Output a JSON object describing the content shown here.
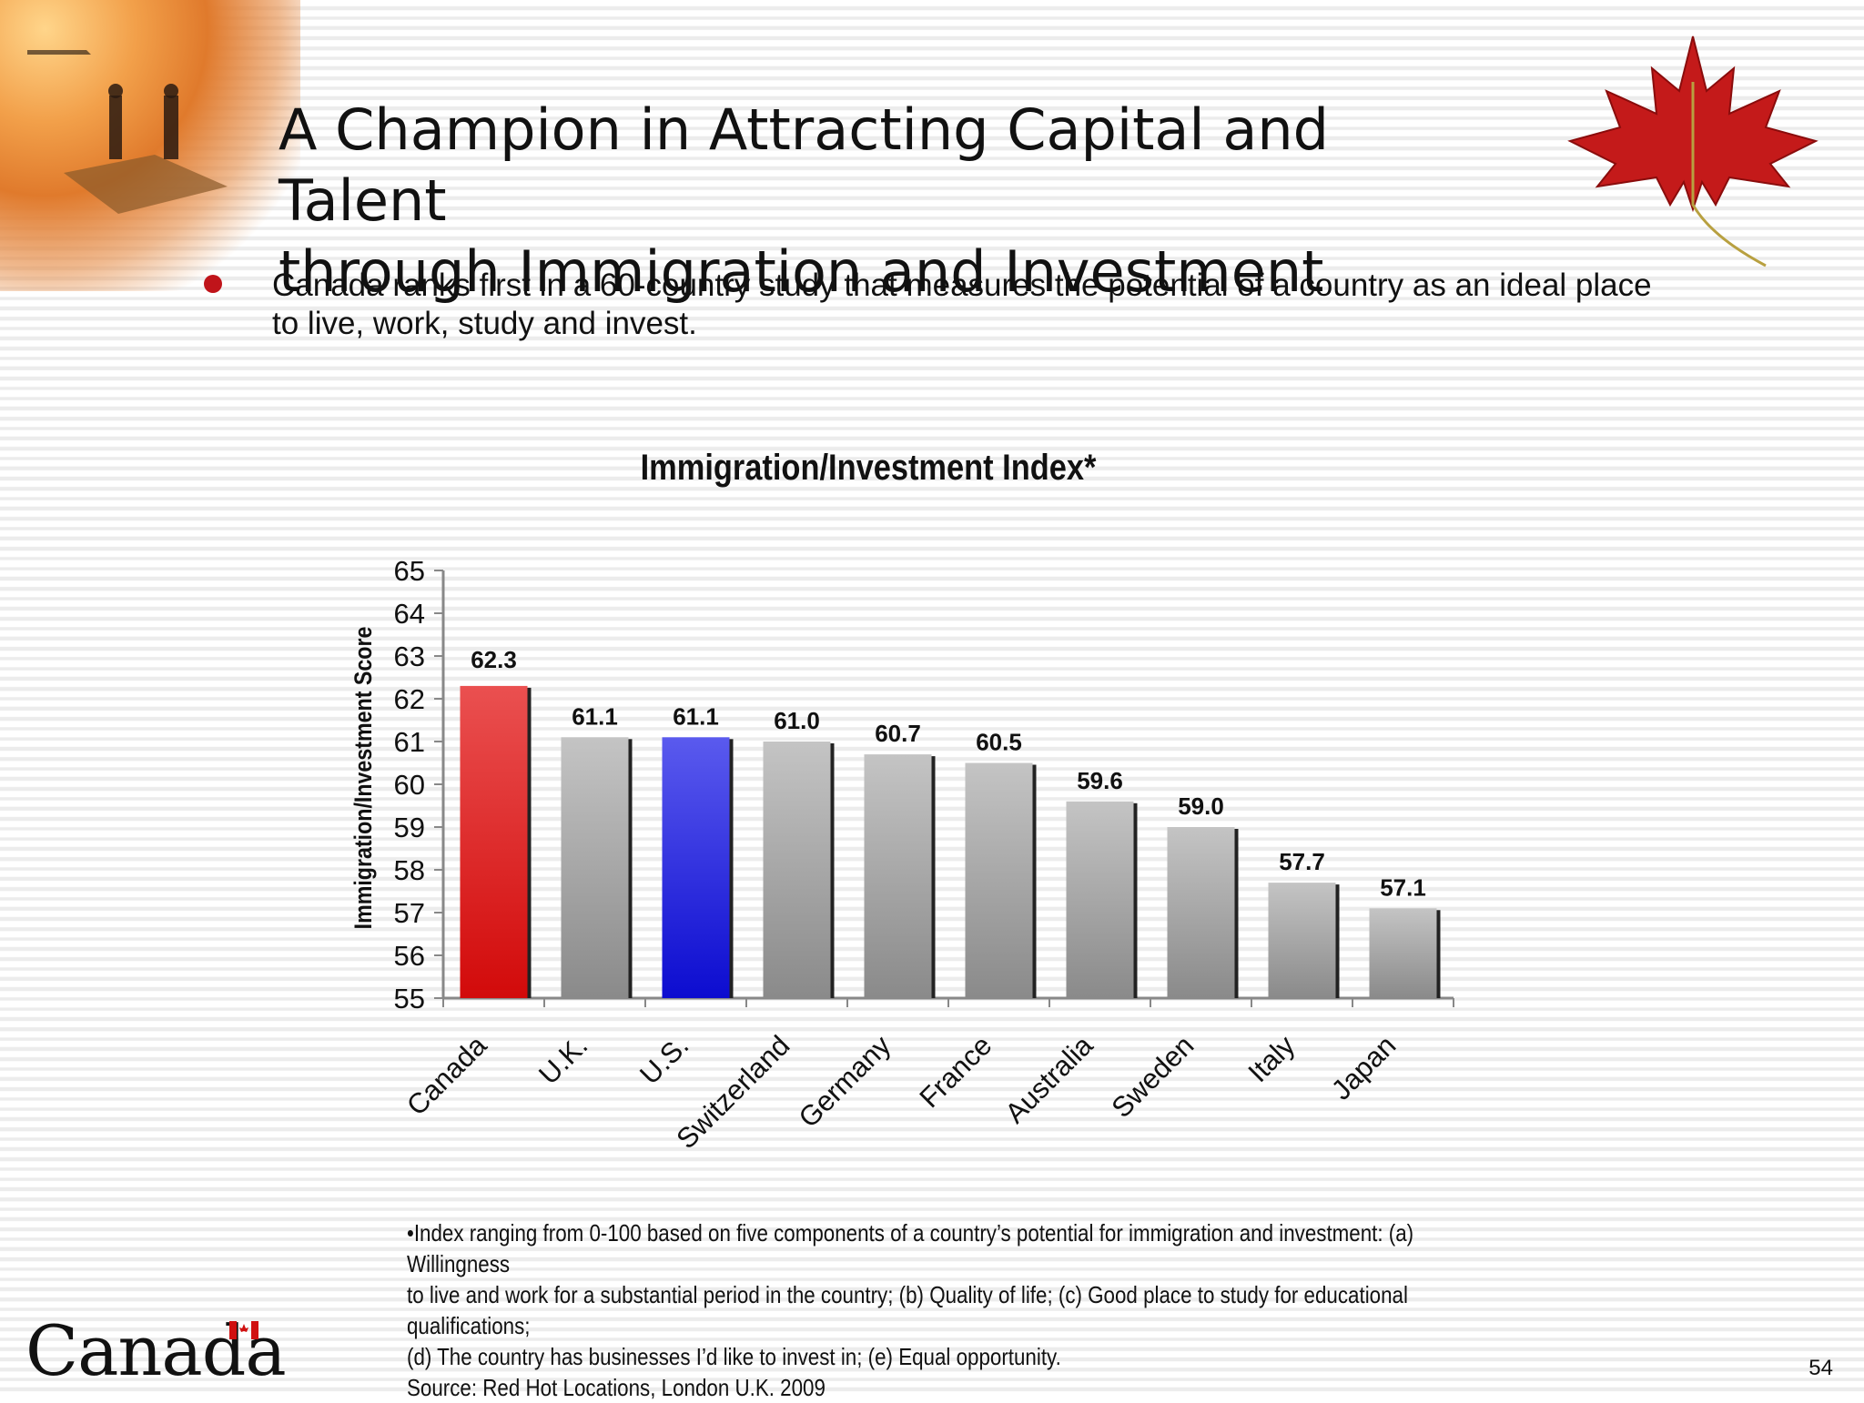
{
  "slide": {
    "title_line1": "A Champion in Attracting Capital and Talent",
    "title_line2": "through Immigration and Investment",
    "bullet": "Canada ranks first in a 60-country study that measures the potential of a country as an ideal place to live, work, study and invest.",
    "footnote_lines": [
      "•Index ranging from 0-100  based on five components of a country’s potential for immigration and investment: (a) Willingness",
      "to live and work for a substantial period in the country; (b) Quality of life; (c) Good place to study for educational qualifications;",
      "(d) The country has businesses I’d like to invest in; (e) Equal opportunity.",
      "Source: Red Hot Locations, London U.K. 2009"
    ],
    "logo_text": "Canada",
    "page_number": "54"
  },
  "chart_data": {
    "type": "bar",
    "title": "Immigration/Investment Index*",
    "ylabel": "Immigration/Investment Score",
    "xlabel": "",
    "ylim": [
      55,
      65
    ],
    "yticks": [
      55,
      56,
      57,
      58,
      59,
      60,
      61,
      62,
      63,
      64,
      65
    ],
    "categories": [
      "Canada",
      "U.K.",
      "U.S.",
      "Switzerland",
      "Germany",
      "France",
      "Australia",
      "Sweden",
      "Italy",
      "Japan"
    ],
    "values": [
      62.3,
      61.1,
      61.1,
      61.0,
      60.7,
      60.5,
      59.6,
      59.0,
      57.7,
      57.1
    ],
    "data_labels": [
      "62.3",
      "61.1",
      "61.1",
      "61.0",
      "60.7",
      "60.5",
      "59.6",
      "59.0",
      "57.7",
      "57.1"
    ],
    "bar_colors": [
      "#e0141a",
      "#a8a8a8",
      "#1a1ad8",
      "#a8a8a8",
      "#a8a8a8",
      "#a8a8a8",
      "#a8a8a8",
      "#a8a8a8",
      "#a8a8a8",
      "#a8a8a8"
    ],
    "legend": "none",
    "grid": false
  }
}
